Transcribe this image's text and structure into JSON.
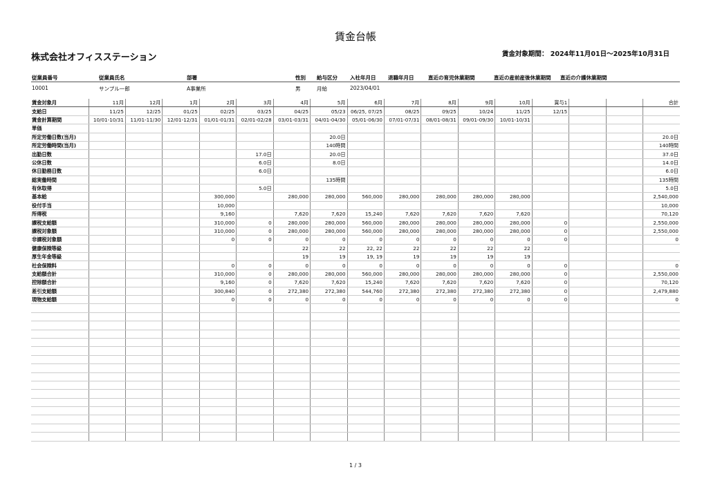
{
  "title": "賃金台帳",
  "company": "株式会社オフィスステーション",
  "period": "賃金対象期間： 2024年11月01日～2025年10月31日",
  "employee": {
    "labels": [
      "従業員番号",
      "従業員氏名",
      "部署",
      "性別",
      "給与区分",
      "入社年月日",
      "退職年月日",
      "直近の育児休業期間",
      "直近の産前産後休業期間",
      "直近の介護休業期間"
    ],
    "values": [
      "10001",
      "サンプル一郎",
      "A事業所",
      "男",
      "月給",
      "2023/04/01",
      "",
      "",
      "",
      ""
    ]
  },
  "table": {
    "header": {
      "label": "賃金対象月",
      "cells": [
        "11月",
        "12月",
        "1月",
        "2月",
        "3月",
        "4月",
        "5月",
        "6月",
        "7月",
        "8月",
        "9月",
        "10月",
        "賞与1",
        "",
        "",
        "合計"
      ]
    },
    "rows": [
      {
        "label": "支給日",
        "cells": [
          "11/25",
          "12/25",
          "01/25",
          "02/25",
          "03/25",
          "04/25",
          "05/23",
          "06/25, 07/25",
          "08/25",
          "09/25",
          "10/24",
          "11/25",
          "12/15",
          "",
          "",
          ""
        ]
      },
      {
        "label": "賃金計算期間",
        "cells": [
          "10/01-10/31",
          "11/01-11/30",
          "12/01-12/31",
          "01/01-01/31",
          "02/01-02/28",
          "03/01-03/31",
          "04/01-04/30",
          "05/01-06/30",
          "07/01-07/31",
          "08/01-08/31",
          "09/01-09/30",
          "10/01-10/31",
          "",
          "",
          "",
          ""
        ]
      },
      {
        "label": "単価",
        "cells": [
          "",
          "",
          "",
          "",
          "",
          "",
          "",
          "",
          "",
          "",
          "",
          "",
          "",
          "",
          "",
          ""
        ]
      },
      {
        "label": "所定労働日数(当月)",
        "cells": [
          "",
          "",
          "",
          "",
          "",
          "",
          "20.0日",
          "",
          "",
          "",
          "",
          "",
          "",
          "",
          "",
          "20.0日"
        ]
      },
      {
        "label": "所定労働時間(当月)",
        "cells": [
          "",
          "",
          "",
          "",
          "",
          "",
          "140時間",
          "",
          "",
          "",
          "",
          "",
          "",
          "",
          "",
          "140時間"
        ]
      },
      {
        "label": "出勤日数",
        "cells": [
          "",
          "",
          "",
          "",
          "17.0日",
          "",
          "20.0日",
          "",
          "",
          "",
          "",
          "",
          "",
          "",
          "",
          "37.0日"
        ]
      },
      {
        "label": "公休日数",
        "cells": [
          "",
          "",
          "",
          "",
          "6.0日",
          "",
          "8.0日",
          "",
          "",
          "",
          "",
          "",
          "",
          "",
          "",
          "14.0日"
        ]
      },
      {
        "label": "休日勤務日数",
        "cells": [
          "",
          "",
          "",
          "",
          "6.0日",
          "",
          "",
          "",
          "",
          "",
          "",
          "",
          "",
          "",
          "",
          "6.0日"
        ]
      },
      {
        "label": "総実働時間",
        "cells": [
          "",
          "",
          "",
          "",
          "",
          "",
          "135時間",
          "",
          "",
          "",
          "",
          "",
          "",
          "",
          "",
          "135時間"
        ]
      },
      {
        "label": "有休取得",
        "cells": [
          "",
          "",
          "",
          "",
          "5.0日",
          "",
          "",
          "",
          "",
          "",
          "",
          "",
          "",
          "",
          "",
          "5.0日"
        ]
      },
      {
        "label": "基本給",
        "cells": [
          "",
          "",
          "",
          "300,000",
          "",
          "280,000",
          "280,000",
          "560,000",
          "280,000",
          "280,000",
          "280,000",
          "280,000",
          "",
          "",
          "",
          "2,540,000"
        ]
      },
      {
        "label": "役付手当",
        "cells": [
          "",
          "",
          "",
          "10,000",
          "",
          "",
          "",
          "",
          "",
          "",
          "",
          "",
          "",
          "",
          "",
          "10,000"
        ]
      },
      {
        "label": "所得税",
        "cells": [
          "",
          "",
          "",
          "9,160",
          "",
          "7,620",
          "7,620",
          "15,240",
          "7,620",
          "7,620",
          "7,620",
          "7,620",
          "",
          "",
          "",
          "70,120"
        ]
      },
      {
        "label": "課税支給額",
        "cells": [
          "",
          "",
          "",
          "310,000",
          "0",
          "280,000",
          "280,000",
          "560,000",
          "280,000",
          "280,000",
          "280,000",
          "280,000",
          "0",
          "",
          "",
          "2,550,000"
        ]
      },
      {
        "label": "課税対象額",
        "cells": [
          "",
          "",
          "",
          "310,000",
          "0",
          "280,000",
          "280,000",
          "560,000",
          "280,000",
          "280,000",
          "280,000",
          "280,000",
          "0",
          "",
          "",
          "2,550,000"
        ]
      },
      {
        "label": "非課税対象額",
        "cells": [
          "",
          "",
          "",
          "0",
          "0",
          "0",
          "0",
          "0",
          "0",
          "0",
          "0",
          "0",
          "0",
          "",
          "",
          "0"
        ]
      },
      {
        "label": "健康保険等級",
        "cells": [
          "",
          "",
          "",
          "",
          "",
          "22",
          "22",
          "22, 22",
          "22",
          "22",
          "22",
          "22",
          "",
          "",
          "",
          ""
        ]
      },
      {
        "label": "厚生年金等級",
        "cells": [
          "",
          "",
          "",
          "",
          "",
          "19",
          "19",
          "19, 19",
          "19",
          "19",
          "19",
          "19",
          "",
          "",
          "",
          ""
        ]
      },
      {
        "label": "社会保険料",
        "cells": [
          "",
          "",
          "",
          "0",
          "0",
          "0",
          "0",
          "0",
          "0",
          "0",
          "0",
          "0",
          "0",
          "",
          "",
          "0"
        ]
      },
      {
        "label": "支給額合計",
        "cells": [
          "",
          "",
          "",
          "310,000",
          "0",
          "280,000",
          "280,000",
          "560,000",
          "280,000",
          "280,000",
          "280,000",
          "280,000",
          "0",
          "",
          "",
          "2,550,000"
        ]
      },
      {
        "label": "控除額合計",
        "cells": [
          "",
          "",
          "",
          "9,160",
          "0",
          "7,620",
          "7,620",
          "15,240",
          "7,620",
          "7,620",
          "7,620",
          "7,620",
          "0",
          "",
          "",
          "70,120"
        ]
      },
      {
        "label": "差引支給額",
        "cells": [
          "",
          "",
          "",
          "300,840",
          "0",
          "272,380",
          "272,380",
          "544,760",
          "272,380",
          "272,380",
          "272,380",
          "272,380",
          "0",
          "",
          "",
          "2,479,880"
        ]
      },
      {
        "label": "現物支給額",
        "cells": [
          "",
          "",
          "",
          "0",
          "0",
          "0",
          "0",
          "0",
          "0",
          "0",
          "0",
          "0",
          "0",
          "",
          "",
          "0"
        ]
      }
    ]
  },
  "footer": {
    "page": "1 / 3"
  }
}
